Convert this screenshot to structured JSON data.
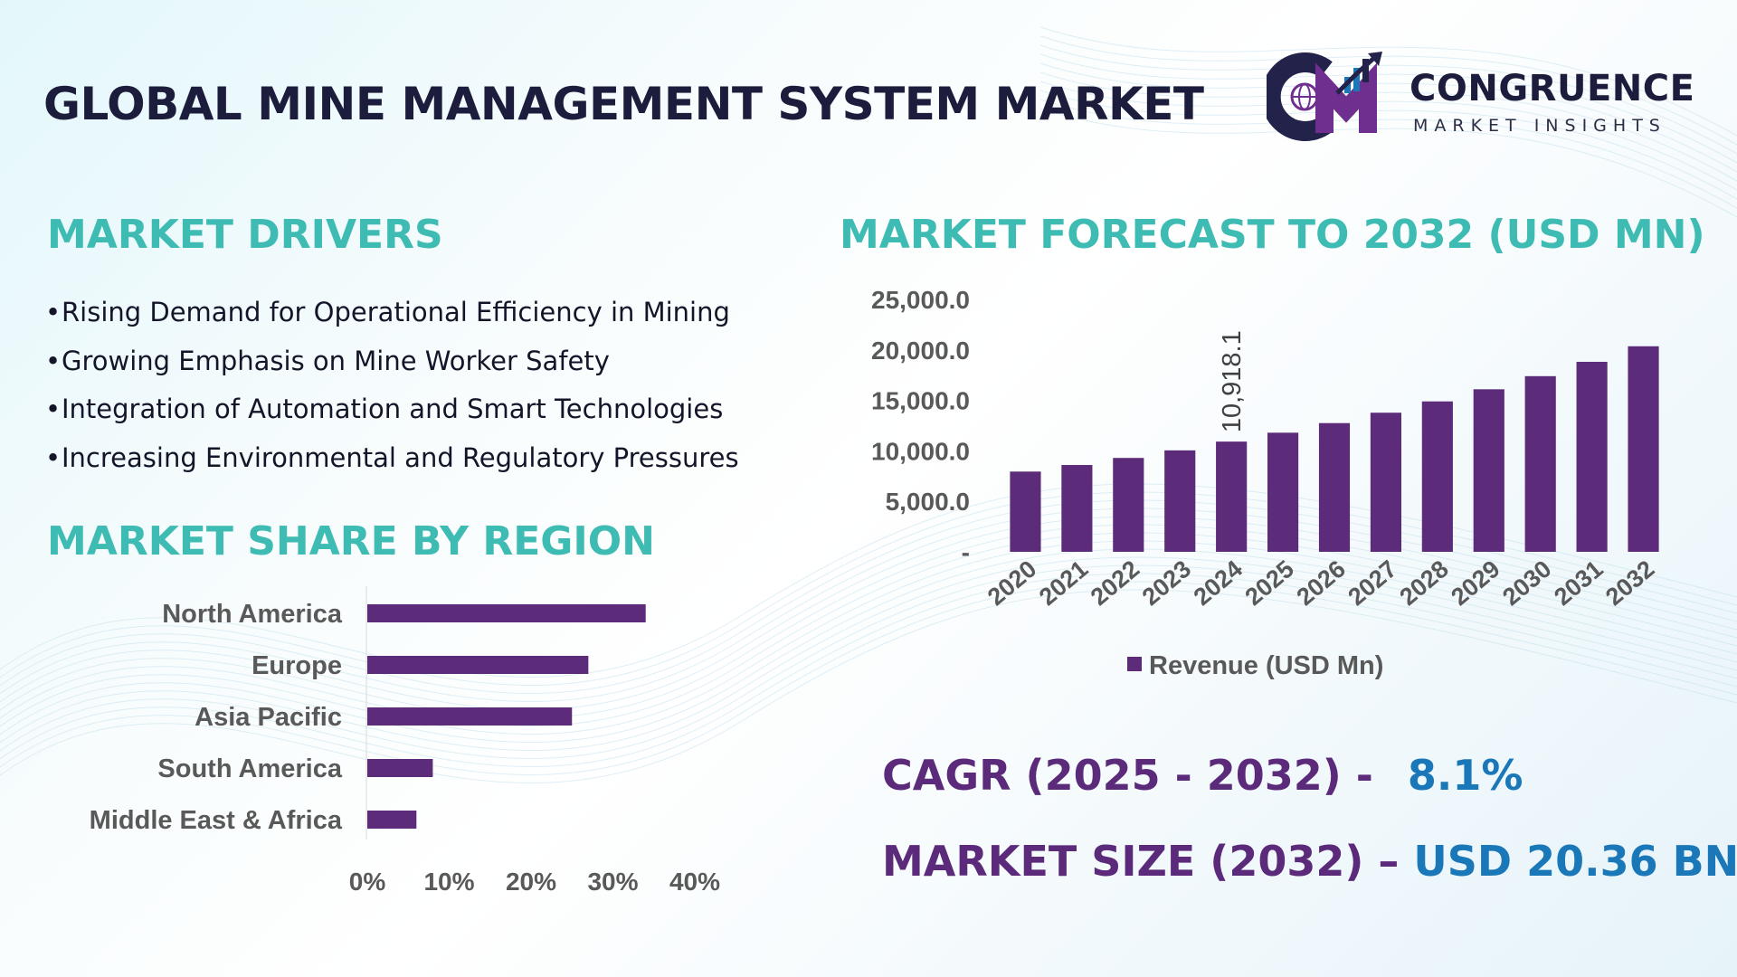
{
  "page": {
    "title": "GLOBAL MINE MANAGEMENT SYSTEM MARKET"
  },
  "logo": {
    "initials": "CM",
    "name": "CONGRUENCE",
    "tagline": "MARKET INSIGHTS",
    "colors": {
      "navy": "#22224a",
      "purple": "#6f2f8f",
      "arrow": "#22224a",
      "bar": "#1b78b8"
    }
  },
  "drivers": {
    "heading": "MARKET DRIVERS",
    "items": [
      "Rising Demand for Operational Efficiency in Mining",
      "Growing Emphasis on Mine Worker Safety",
      "Integration of Automation and Smart Technologies",
      "Increasing Environmental and Regulatory Pressures"
    ]
  },
  "region": {
    "heading": "MARKET SHARE BY REGION"
  },
  "forecast": {
    "heading": "MARKET FORECAST TO 2032 (USD MN)"
  },
  "kpis": {
    "cagr_label": "CAGR (2025 - 2032) -",
    "cagr_value": "8.1%",
    "size_label": "MARKET SIZE (2032) –",
    "size_value": "USD 20.36 BN"
  },
  "colors": {
    "heading": "#3ebbb2",
    "bar": "#5c2b79",
    "axis_text": "#595959",
    "kpi_label": "#5b2a7a",
    "kpi_value": "#1b78b8"
  },
  "chart_data": [
    {
      "type": "bar",
      "orientation": "vertical",
      "categories": [
        "2020",
        "2021",
        "2022",
        "2023",
        "2024",
        "2025",
        "2026",
        "2027",
        "2028",
        "2029",
        "2030",
        "2031",
        "2032"
      ],
      "series": [
        {
          "name": "Revenue (USD Mn)",
          "values": [
            7950,
            8600,
            9300,
            10050,
            10918.1,
            11800,
            12750,
            13780,
            14900,
            16100,
            17400,
            18820,
            20360
          ]
        }
      ],
      "data_labels": [
        {
          "category": "2024",
          "text": "10,918.1"
        }
      ],
      "ylim": [
        0,
        25000
      ],
      "yticks": [
        0,
        5000,
        10000,
        15000,
        20000,
        25000
      ],
      "ytick_labels": [
        "-",
        "5,000.0",
        "10,000.0",
        "15,000.0",
        "20,000.0",
        "25,000.0"
      ],
      "legend": "bottom",
      "grid": false
    },
    {
      "type": "bar",
      "orientation": "horizontal",
      "categories": [
        "North America",
        "Europe",
        "Asia Pacific",
        "South America",
        "Middle East & Africa"
      ],
      "values": [
        34,
        27,
        25,
        8,
        6
      ],
      "unit": "%",
      "xlim": [
        0,
        40
      ],
      "xticks": [
        0,
        10,
        20,
        30,
        40
      ],
      "xtick_labels": [
        "0%",
        "10%",
        "20%",
        "30%",
        "40%"
      ],
      "grid": false
    }
  ]
}
